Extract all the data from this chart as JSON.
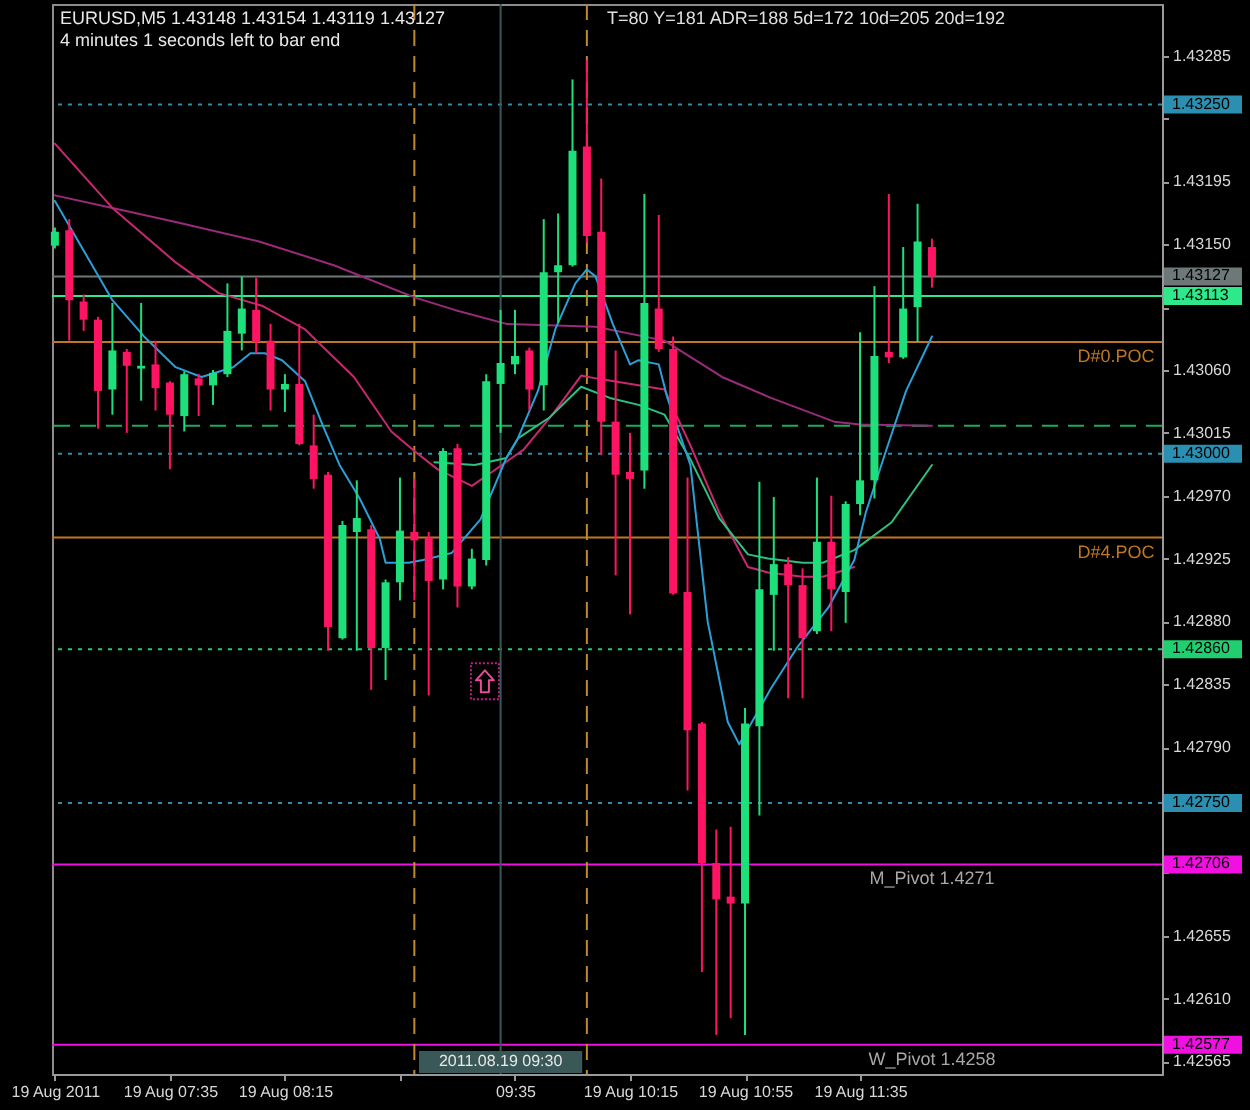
{
  "chart_data": {
    "type": "candlestick",
    "title": "EURUSD,M5 1.43148 1.43154 1.43119 1.43127",
    "subtitle": "4 minutes 1 seconds left to bar end",
    "annotations": [
      "T=80 Y=181 ADR=188 5d=172 10d=205 20d=192",
      {
        "text": "D#0.POC",
        "x": "2011-08-19T13:04",
        "y": 1.4308
      },
      {
        "text": "D#4.POC",
        "x": "2011-08-19T13:04",
        "y": 1.4294
      },
      {
        "text": "M_Pivot 1.4271",
        "x": "2011-08-19T12:00",
        "y": 1.42706
      },
      {
        "text": "W_Pivot 1.4258",
        "x": "2011-08-19T12:00",
        "y": 1.42577
      }
    ],
    "x": [
      "2011-08-19T06:55",
      "2011-08-19T07:00",
      "2011-08-19T07:05",
      "2011-08-19T07:10",
      "2011-08-19T07:15",
      "2011-08-19T07:20",
      "2011-08-19T07:25",
      "2011-08-19T07:30",
      "2011-08-19T07:35",
      "2011-08-19T07:40",
      "2011-08-19T07:45",
      "2011-08-19T07:50",
      "2011-08-19T07:55",
      "2011-08-19T08:00",
      "2011-08-19T08:05",
      "2011-08-19T08:10",
      "2011-08-19T08:15",
      "2011-08-19T08:20",
      "2011-08-19T08:25",
      "2011-08-19T08:30",
      "2011-08-19T08:35",
      "2011-08-19T08:40",
      "2011-08-19T08:45",
      "2011-08-19T08:50",
      "2011-08-19T08:55",
      "2011-08-19T09:00",
      "2011-08-19T09:05",
      "2011-08-19T09:10",
      "2011-08-19T09:15",
      "2011-08-19T09:20",
      "2011-08-19T09:25",
      "2011-08-19T09:30",
      "2011-08-19T09:35",
      "2011-08-19T09:40",
      "2011-08-19T09:45",
      "2011-08-19T09:50",
      "2011-08-19T09:55",
      "2011-08-19T10:00",
      "2011-08-19T10:05",
      "2011-08-19T10:10",
      "2011-08-19T10:15",
      "2011-08-19T10:20",
      "2011-08-19T10:25",
      "2011-08-19T10:30",
      "2011-08-19T10:35",
      "2011-08-19T10:40",
      "2011-08-19T10:45",
      "2011-08-19T10:50",
      "2011-08-19T10:55",
      "2011-08-19T11:00",
      "2011-08-19T11:05",
      "2011-08-19T11:10",
      "2011-08-19T11:15",
      "2011-08-19T11:20",
      "2011-08-19T11:25",
      "2011-08-19T11:30",
      "2011-08-19T11:35",
      "2011-08-19T11:40",
      "2011-08-19T11:45",
      "2011-08-19T11:50",
      "2011-08-19T11:55",
      "2011-08-19T12:00"
    ],
    "ohlc": [
      [
        1.43149,
        1.43162,
        1.43147,
        1.43159
      ],
      [
        1.4316,
        1.43168,
        1.43081,
        1.4311
      ],
      [
        1.43109,
        1.43114,
        1.43088,
        1.43096
      ],
      [
        1.43096,
        1.43098,
        1.43018,
        1.43045
      ],
      [
        1.43046,
        1.43108,
        1.43028,
        1.43074
      ],
      [
        1.43073,
        1.43075,
        1.43015,
        1.43063
      ],
      [
        1.43061,
        1.43108,
        1.43038,
        1.43063
      ],
      [
        1.43064,
        1.43081,
        1.43031,
        1.43047
      ],
      [
        1.43051,
        1.43052,
        1.42989,
        1.43028
      ],
      [
        1.43027,
        1.43059,
        1.43016,
        1.43057
      ],
      [
        1.43054,
        1.43057,
        1.43027,
        1.43049
      ],
      [
        1.43049,
        1.4306,
        1.43035,
        1.43058
      ],
      [
        1.43057,
        1.43122,
        1.43055,
        1.43088
      ],
      [
        1.43086,
        1.43127,
        1.43074,
        1.43104
      ],
      [
        1.43103,
        1.43126,
        1.43072,
        1.4308
      ],
      [
        1.43081,
        1.43093,
        1.43031,
        1.43046
      ],
      [
        1.43046,
        1.43057,
        1.4303,
        1.4305
      ],
      [
        1.4305,
        1.43093,
        1.43006,
        1.43007
      ],
      [
        1.43006,
        1.43028,
        1.42975,
        1.42982
      ],
      [
        1.42985,
        1.42987,
        1.42859,
        1.42876
      ],
      [
        1.42868,
        1.42952,
        1.42867,
        1.42949
      ],
      [
        1.42944,
        1.42981,
        1.42859,
        1.42954
      ],
      [
        1.42946,
        1.42949,
        1.42831,
        1.42861
      ],
      [
        1.42861,
        1.4291,
        1.42838,
        1.42908
      ],
      [
        1.42908,
        1.42983,
        1.42895,
        1.42945
      ],
      [
        1.42944,
        1.42982,
        1.42895,
        1.42938
      ],
      [
        1.4294,
        1.42944,
        1.42827,
        1.42909
      ],
      [
        1.4291,
        1.43004,
        1.42903,
        1.43002
      ],
      [
        1.43004,
        1.43007,
        1.4289,
        1.42905
      ],
      [
        1.42905,
        1.42932,
        1.42903,
        1.42925
      ],
      [
        1.42924,
        1.43057,
        1.4292,
        1.43052
      ],
      [
        1.4305,
        1.43103,
        1.43015,
        1.43065
      ],
      [
        1.43064,
        1.43103,
        1.43057,
        1.4307
      ],
      [
        1.43074,
        1.43076,
        1.43031,
        1.43046
      ],
      [
        1.43049,
        1.43168,
        1.43031,
        1.4313
      ],
      [
        1.4313,
        1.43172,
        1.43094,
        1.43135
      ],
      [
        1.43135,
        1.43268,
        1.43134,
        1.43217
      ],
      [
        1.4322,
        1.43282,
        1.43151,
        1.43156
      ],
      [
        1.43159,
        1.43197,
        1.42999,
        1.43023
      ],
      [
        1.43023,
        1.43074,
        1.42913,
        1.42985
      ],
      [
        1.42987,
        1.43015,
        1.42885,
        1.42982
      ],
      [
        1.42988,
        1.43186,
        1.42975,
        1.43108
      ],
      [
        1.43104,
        1.43171,
        1.43073,
        1.43075
      ],
      [
        1.43075,
        1.43084,
        1.42899,
        1.429
      ],
      [
        1.42901,
        1.42983,
        1.42759,
        1.42802
      ],
      [
        1.42807,
        1.42808,
        1.42629,
        1.42707
      ],
      [
        1.42707,
        1.42731,
        1.42584,
        1.42681
      ],
      [
        1.42683,
        1.42733,
        1.42596,
        1.42678
      ],
      [
        1.42678,
        1.42818,
        1.42584,
        1.42807
      ],
      [
        1.42805,
        1.4298,
        1.42741,
        1.42903
      ],
      [
        1.42899,
        1.42969,
        1.42859,
        1.42921
      ],
      [
        1.42921,
        1.42926,
        1.42825,
        1.42906
      ],
      [
        1.42906,
        1.42918,
        1.42825,
        1.42868
      ],
      [
        1.42873,
        1.42983,
        1.42871,
        1.42937
      ],
      [
        1.42937,
        1.4297,
        1.42873,
        1.42903
      ],
      [
        1.42901,
        1.42966,
        1.42879,
        1.42964
      ],
      [
        1.42964,
        1.43087,
        1.42956,
        1.42981
      ],
      [
        1.42981,
        1.4312,
        1.42968,
        1.4307
      ],
      [
        1.43073,
        1.43186,
        1.43065,
        1.43069
      ],
      [
        1.43069,
        1.43148,
        1.43068,
        1.43104
      ],
      [
        1.43105,
        1.43179,
        1.4308,
        1.43152
      ],
      [
        1.43148,
        1.43154,
        1.43119,
        1.43127
      ]
    ],
    "colors": [
      "#1ee07a",
      "#ff1464",
      "#ff1464",
      "#ff1464",
      "#1ee07a",
      "#ff1464",
      "#1ee07a",
      "#ff1464",
      "#ff1464",
      "#1ee07a",
      "#ff1464",
      "#1ee07a",
      "#1ee07a",
      "#1ee07a",
      "#ff1464",
      "#ff1464",
      "#1ee07a",
      "#ff1464",
      "#ff1464",
      "#ff1464",
      "#1ee07a",
      "#1ee07a",
      "#ff1464",
      "#1ee07a",
      "#1ee07a",
      "#ff1464",
      "#ff1464",
      "#1ee07a",
      "#ff1464",
      "#1ee07a",
      "#1ee07a",
      "#1ee07a",
      "#1ee07a",
      "#ff1464",
      "#1ee07a",
      "#1ee07a",
      "#1ee07a",
      "#ff1464",
      "#ff1464",
      "#ff1464",
      "#ff1464",
      "#1ee07a",
      "#ff1464",
      "#ff1464",
      "#ff1464",
      "#ff1464",
      "#ff1464",
      "#ff1464",
      "#1ee07a",
      "#1ee07a",
      "#1ee07a",
      "#ff1464",
      "#ff1464",
      "#1ee07a",
      "#ff1464",
      "#1ee07a",
      "#1ee07a",
      "#1ee07a",
      "#ff1464",
      "#1ee07a",
      "#1ee07a",
      "#ff1464"
    ],
    "series": [
      {
        "type": "line",
        "color": "#9a2a7a",
        "x": [
          "2011-08-19T06:55",
          "2011-08-19T07:15",
          "2011-08-19T07:37",
          "2011-08-19T08:06",
          "2011-08-19T08:32",
          "2011-08-19T09:00",
          "2011-08-19T09:14",
          "2011-08-19T09:32",
          "2011-08-19T10:03",
          "2011-08-19T10:27",
          "2011-08-19T10:47",
          "2011-08-19T11:04",
          "2011-08-19T11:26",
          "2011-08-19T11:35",
          "2011-08-19T12:00"
        ],
        "values": [
          1.43185,
          1.43176,
          1.43166,
          1.43152,
          1.43135,
          1.43112,
          1.43103,
          1.43093,
          1.43091,
          1.43081,
          1.43055,
          1.4304,
          1.43023,
          1.43021,
          1.4302
        ]
      },
      {
        "type": "line",
        "color": "#c82870",
        "x": [
          "2011-08-19T06:55",
          "2011-08-19T07:15",
          "2011-08-19T07:37",
          "2011-08-19T07:52",
          "2011-08-19T08:07",
          "2011-08-19T08:22",
          "2011-08-19T08:39",
          "2011-08-19T08:52",
          "2011-08-19T09:00",
          "2011-08-19T09:08",
          "2011-08-19T09:20",
          "2011-08-19T09:27",
          "2011-08-19T09:38",
          "2011-08-19T09:48",
          "2011-08-19T09:58",
          "2011-08-19T10:03",
          "2011-08-19T10:27",
          "2011-08-19T10:36",
          "2011-08-19T10:46",
          "2011-08-19T10:56",
          "2011-08-19T11:03",
          "2011-08-19T11:15",
          "2011-08-19T11:22",
          "2011-08-19T11:33"
        ],
        "values": [
          1.43222,
          1.43176,
          1.43137,
          1.43115,
          1.43106,
          1.43089,
          1.43055,
          1.43016,
          1.43002,
          1.42989,
          1.42977,
          1.42987,
          1.43003,
          1.43028,
          1.43056,
          1.43054,
          1.43046,
          1.43006,
          1.42958,
          1.42919,
          1.42915,
          1.42912,
          1.42912,
          1.42919
        ]
      },
      {
        "type": "line",
        "color": "#2fbf7f",
        "x": [
          "2011-08-19T09:07",
          "2011-08-19T09:21",
          "2011-08-19T09:32",
          "2011-08-19T09:36",
          "2011-08-19T09:47",
          "2011-08-19T09:58",
          "2011-08-19T10:08",
          "2011-08-19T10:18",
          "2011-08-19T10:27",
          "2011-08-19T10:36",
          "2011-08-19T10:46",
          "2011-08-19T10:56",
          "2011-08-19T11:03",
          "2011-08-19T11:15",
          "2011-08-19T11:22",
          "2011-08-19T11:33",
          "2011-08-19T11:46",
          "2011-08-19T12:00"
        ],
        "values": [
          1.42994,
          1.42992,
          1.42997,
          1.43011,
          1.43026,
          1.43048,
          1.4304,
          1.43035,
          1.43028,
          1.42996,
          1.42954,
          1.42928,
          1.42925,
          1.42922,
          1.42922,
          1.42931,
          1.42951,
          1.42992
        ]
      },
      {
        "type": "line",
        "color": "#2aa0d8",
        "x": [
          "2011-08-19T06:55",
          "2011-08-19T07:06",
          "2011-08-19T07:15",
          "2011-08-19T07:26",
          "2011-08-19T07:37",
          "2011-08-19T07:46",
          "2011-08-19T07:57",
          "2011-08-19T08:03",
          "2011-08-19T08:08",
          "2011-08-19T08:14",
          "2011-08-19T08:22",
          "2011-08-19T08:28",
          "2011-08-19T08:34",
          "2011-08-19T08:41",
          "2011-08-19T08:48",
          "2011-08-19T08:50",
          "2011-08-19T08:58",
          "2011-08-19T09:03",
          "2011-08-19T09:13",
          "2011-08-19T09:23",
          "2011-08-19T09:32",
          "2011-08-19T09:36",
          "2011-08-19T09:43",
          "2011-08-19T09:49",
          "2011-08-19T09:56",
          "2011-08-19T10:00",
          "2011-08-19T10:03",
          "2011-08-19T10:09",
          "2011-08-19T10:15",
          "2011-08-19T10:18",
          "2011-08-19T10:25",
          "2011-08-19T10:28",
          "2011-08-19T10:36",
          "2011-08-19T10:42",
          "2011-08-19T10:49",
          "2011-08-19T10:53",
          "2011-08-19T11:04",
          "2011-08-19T11:13",
          "2011-08-19T11:24",
          "2011-08-19T11:33",
          "2011-08-19T11:37",
          "2011-08-19T11:44",
          "2011-08-19T11:51",
          "2011-08-19T12:00"
        ],
        "values": [
          1.43181,
          1.43142,
          1.4311,
          1.43084,
          1.43062,
          1.43055,
          1.43062,
          1.43072,
          1.43072,
          1.43067,
          1.43052,
          1.43021,
          1.42992,
          1.42968,
          1.42939,
          1.42922,
          1.42922,
          1.42924,
          1.42929,
          1.42953,
          1.42997,
          1.43011,
          1.43045,
          1.43089,
          1.43122,
          1.43132,
          1.43127,
          1.43093,
          1.43064,
          1.43067,
          1.43064,
          1.4304,
          1.42992,
          1.4288,
          1.42808,
          1.42792,
          1.42832,
          1.42861,
          1.4289,
          1.42924,
          1.42958,
          1.43002,
          1.43045,
          1.43084
        ]
      }
    ],
    "xlim": [
      "2011-08-19T06:54",
      "2011-08-19T13:20"
    ],
    "ylim": [
      1.42556,
      1.43322
    ],
    "xticks": [
      {
        "value": "2011-08-19T06:55",
        "label": "19 Aug 2011"
      },
      {
        "value": "2011-08-19T07:35",
        "label": "19 Aug 07:35"
      },
      {
        "value": "2011-08-19T08:15",
        "label": "19 Aug 08:15"
      },
      {
        "value": "2011-08-19T08:55",
        "label": null
      },
      {
        "value": "2011-08-19T09:35",
        "label": "09:35"
      },
      {
        "value": "2011-08-19T10:15",
        "label": "19 Aug 10:15"
      },
      {
        "value": "2011-08-19T10:55",
        "label": "19 Aug 10:55"
      },
      {
        "value": "2011-08-19T11:35",
        "label": "19 Aug 11:35"
      }
    ],
    "yticks": [
      1.43285,
      {
        "value": 1.4324,
        "label": null
      },
      1.43195,
      {
        "value": 1.4315,
        "label": "1.43150"
      },
      {
        "value": 1.43105,
        "label": null
      },
      {
        "value": 1.4306,
        "label": "1.43060"
      },
      1.43015,
      {
        "value": 1.4297,
        "label": "1.42970"
      },
      1.42925,
      {
        "value": 1.4288,
        "label": "1.42880"
      },
      1.42835,
      {
        "value": 1.4279,
        "label": "1.42790"
      },
      {
        "value": 1.42745,
        "label": null
      },
      {
        "value": 1.427,
        "label": null
      },
      1.42655,
      {
        "value": 1.4261,
        "label": "1.42610"
      },
      1.42565
    ],
    "ref_lines": [
      {
        "axis": "y",
        "value": 1.4325,
        "label": "1.43250",
        "color": "#2a8fb0",
        "line_style": "dotted"
      },
      {
        "axis": "y",
        "value": 1.43127,
        "label": "1.43127",
        "color": "#6f7878"
      },
      {
        "axis": "y",
        "value": 1.43113,
        "label": "1.43113",
        "color": "#2ee88a"
      },
      {
        "axis": "y",
        "value": 1.4308,
        "color": "#c07820"
      },
      {
        "axis": "y",
        "value": 1.4302,
        "color": "#1fa860",
        "line_style": "dashed"
      },
      {
        "axis": "y",
        "value": 1.43,
        "label": "1.43000",
        "color": "#2a8fb0",
        "line_style": "dotted"
      },
      {
        "axis": "y",
        "value": 1.4294,
        "color": "#c07820"
      },
      {
        "axis": "y",
        "value": 1.4286,
        "label": "1.42860",
        "color": "#20d070",
        "line_style": "dotted"
      },
      {
        "axis": "y",
        "value": 1.4275,
        "label": "1.42750",
        "color": "#2a8fb0",
        "line_style": "dotted"
      },
      {
        "axis": "y",
        "value": 1.42706,
        "label": "1.42706",
        "color": "#f010e0"
      },
      {
        "axis": "y",
        "value": 1.42577,
        "label": "1.42577",
        "color": "#f010e0"
      },
      {
        "axis": "x",
        "value": "2011-08-19T09:00",
        "color": "#c08a28",
        "line_style": "dashed"
      },
      {
        "axis": "x",
        "value": "2011-08-19T09:30",
        "label": "2011.08.19 09:30",
        "color": "#3a5858"
      },
      {
        "axis": "x",
        "value": "2011-08-19T10:00",
        "color": "#c08a28",
        "line_style": "dashed"
      }
    ]
  }
}
